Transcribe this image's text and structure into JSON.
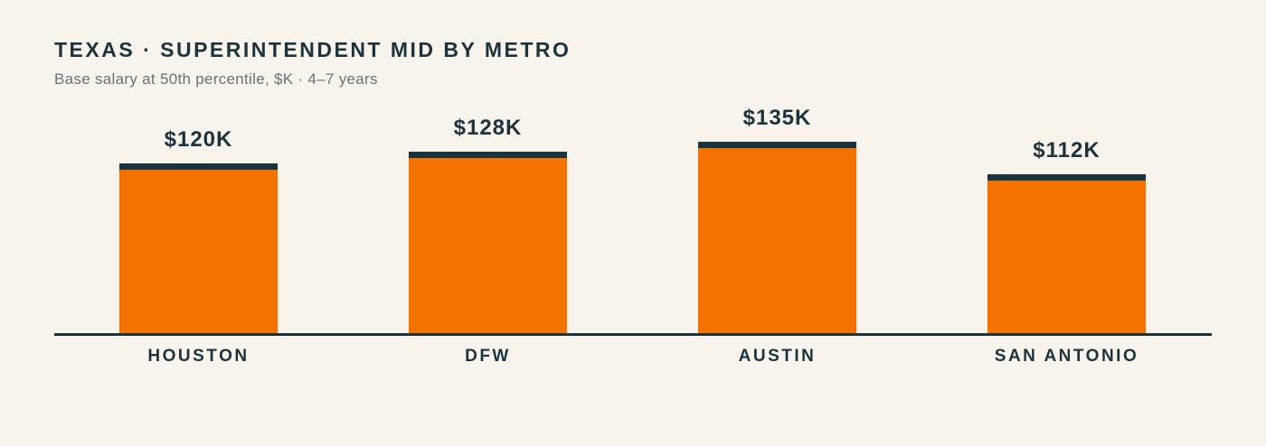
{
  "page": {
    "background_color": "#F8F4EB",
    "accent_color": "#F47200",
    "ink_color": "#1B333E",
    "muted_color": "#6B7076"
  },
  "header": {
    "title": "TEXAS · SUPERINTENDENT MID BY METRO",
    "subtitle": "Base salary at 50th percentile, $K · 4–7 years"
  },
  "chart_data": {
    "type": "bar",
    "title": "TEXAS · SUPERINTENDENT MID BY METRO",
    "subtitle": "Base salary at 50th percentile, $K · 4–7 years",
    "categories": [
      "HOUSTON",
      "DFW",
      "AUSTIN",
      "SAN ANTONIO"
    ],
    "values": [
      120,
      128,
      135,
      112
    ],
    "value_labels": [
      "$120K",
      "$128K",
      "$135K",
      "$112K"
    ],
    "xlabel": "",
    "ylabel": "Base salary at 50th percentile, $K",
    "ylim": [
      0,
      135
    ],
    "grid": false,
    "legend": false,
    "bar_color": "#F47200",
    "bar_cap_color": "#1B333E",
    "axis_color": "#1B333E"
  }
}
